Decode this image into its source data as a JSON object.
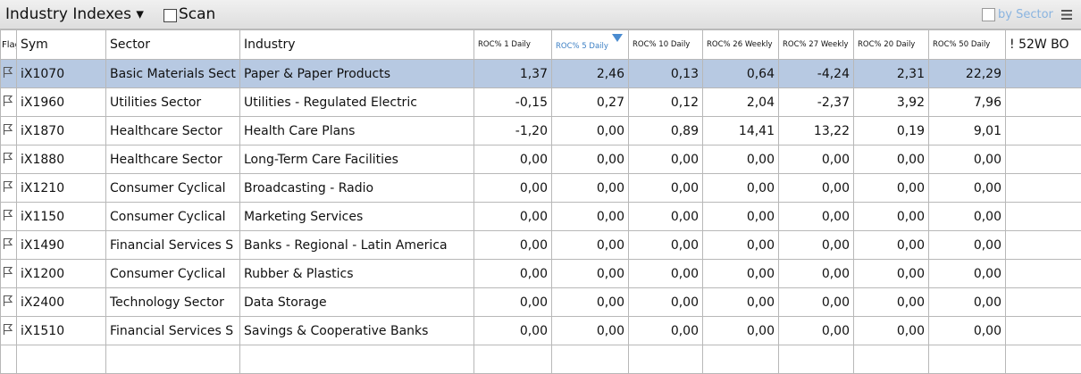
{
  "header": {
    "title": "Industry Indexes",
    "scan": "Scan",
    "by_sector": "by Sector"
  },
  "table": {
    "columns": [
      "Flag",
      "Sym",
      "Sector",
      "Industry",
      "ROC% 1 Daily",
      "ROC% 5 Daily",
      "ROC% 10 Daily",
      "ROC% 26 Weekly",
      "ROC% 27 Weekly",
      "ROC% 20 Daily",
      "ROC% 50 Daily",
      "! 52W BO"
    ],
    "rows": [
      [
        "iX1070",
        "Basic Materials Sect",
        "Paper & Paper Products",
        "1,37",
        "2,46",
        "0,13",
        "0,64",
        "-4,24",
        "2,31",
        "22,29"
      ],
      [
        "iX1960",
        "Utilities Sector",
        "Utilities - Regulated Electric",
        "-0,15",
        "0,27",
        "0,12",
        "2,04",
        "-2,37",
        "3,92",
        "7,96"
      ],
      [
        "iX1870",
        "Healthcare Sector",
        "Health Care Plans",
        "-1,20",
        "0,00",
        "0,89",
        "14,41",
        "13,22",
        "0,19",
        "9,01"
      ],
      [
        "iX1880",
        "Healthcare Sector",
        "Long-Term Care Facilities",
        "0,00",
        "0,00",
        "0,00",
        "0,00",
        "0,00",
        "0,00",
        "0,00"
      ],
      [
        "iX1210",
        "Consumer Cyclical",
        "Broadcasting - Radio",
        "0,00",
        "0,00",
        "0,00",
        "0,00",
        "0,00",
        "0,00",
        "0,00"
      ],
      [
        "iX1150",
        "Consumer Cyclical",
        "Marketing Services",
        "0,00",
        "0,00",
        "0,00",
        "0,00",
        "0,00",
        "0,00",
        "0,00"
      ],
      [
        "iX1490",
        "Financial Services S",
        "Banks - Regional - Latin America",
        "0,00",
        "0,00",
        "0,00",
        "0,00",
        "0,00",
        "0,00",
        "0,00"
      ],
      [
        "iX1200",
        "Consumer Cyclical",
        "Rubber & Plastics",
        "0,00",
        "0,00",
        "0,00",
        "0,00",
        "0,00",
        "0,00",
        "0,00"
      ],
      [
        "iX2400",
        "Technology Sector",
        "Data Storage",
        "0,00",
        "0,00",
        "0,00",
        "0,00",
        "0,00",
        "0,00",
        "0,00"
      ],
      [
        "iX1510",
        "Financial Services S",
        "Savings & Cooperative Banks",
        "0,00",
        "0,00",
        "0,00",
        "0,00",
        "0,00",
        "0,00",
        "0,00"
      ]
    ]
  }
}
